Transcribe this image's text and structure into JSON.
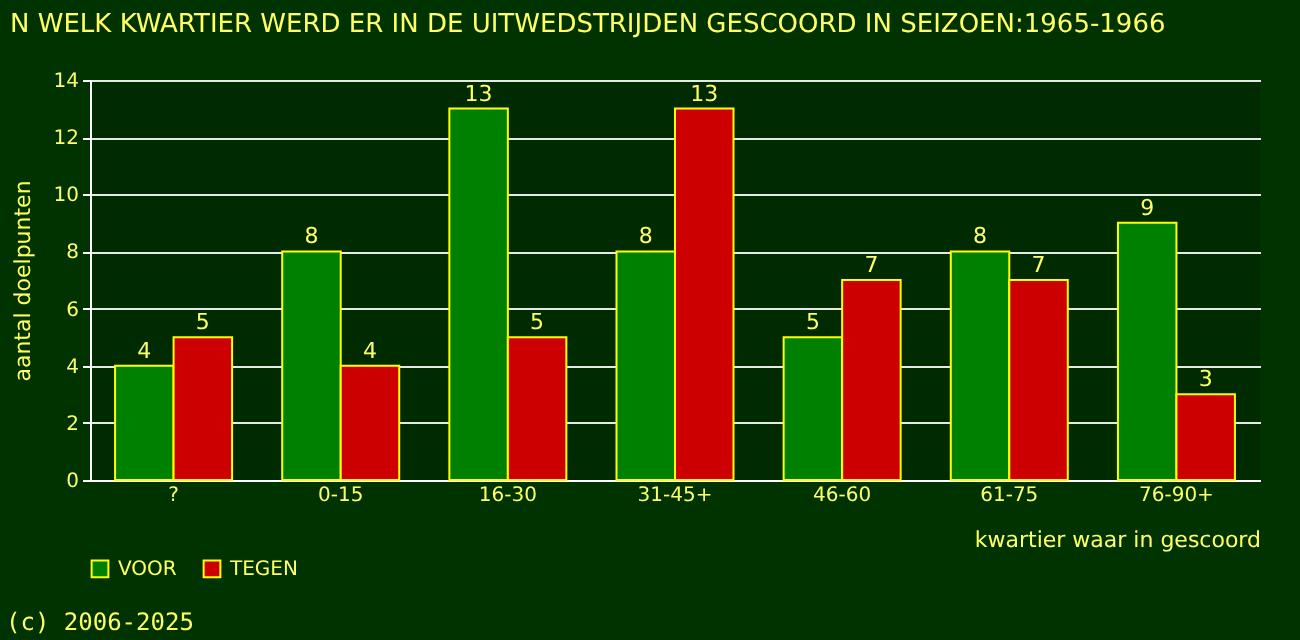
{
  "chart_data": {
    "type": "bar",
    "title": "N WELK KWARTIER WERD ER IN DE UITWEDSTRIJDEN GESCOORD IN SEIZOEN:1965-1966",
    "xlabel": "kwartier waar in gescoord",
    "ylabel": "aantal doelpunten",
    "categories": [
      "?",
      "0-15",
      "16-30",
      "31-45+",
      "46-60",
      "61-75",
      "76-90+"
    ],
    "series": [
      {
        "name": "VOOR",
        "color": "#008000",
        "values": [
          4,
          8,
          13,
          8,
          5,
          8,
          9
        ]
      },
      {
        "name": "TEGEN",
        "color": "#cc0000",
        "values": [
          5,
          4,
          5,
          13,
          7,
          7,
          3
        ]
      }
    ],
    "ylim": [
      0,
      14
    ],
    "yticks": [
      0,
      2,
      4,
      6,
      8,
      10,
      12,
      14
    ],
    "grid": "y",
    "legend": "bottom",
    "data_labels": true,
    "annotations": [
      "(c) 2006-2025"
    ]
  }
}
